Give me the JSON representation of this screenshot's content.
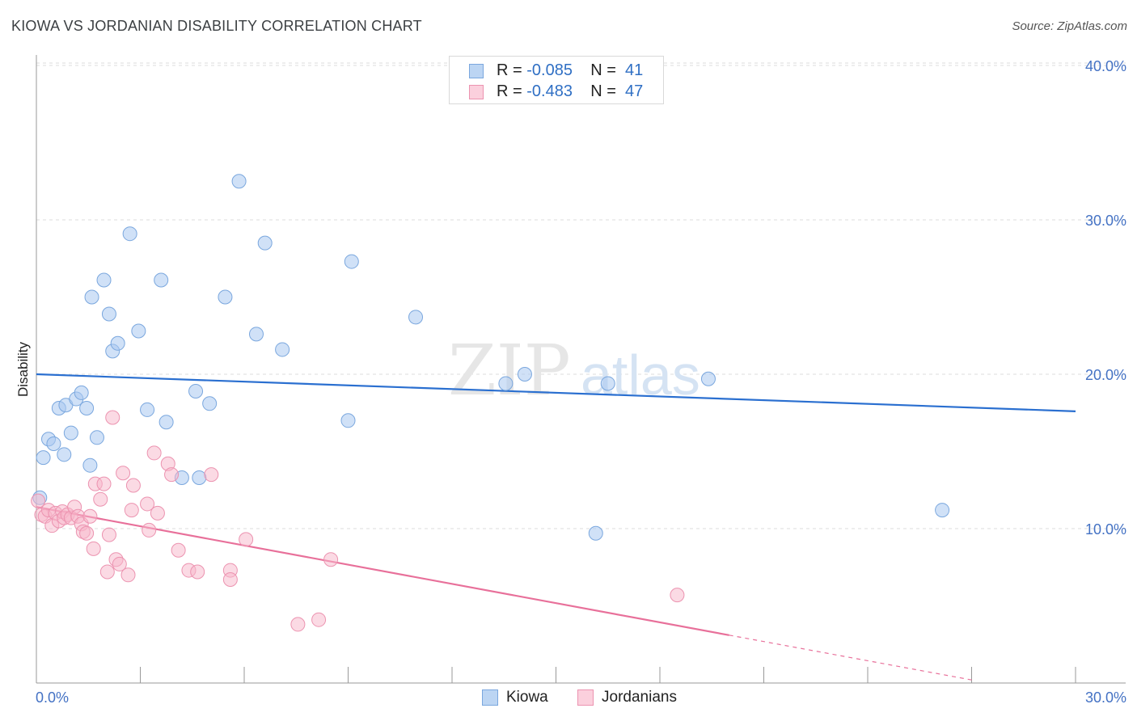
{
  "title": "KIOWA VS JORDANIAN DISABILITY CORRELATION CHART",
  "source": "Source: ZipAtlas.com",
  "watermark": {
    "zip": "ZIP",
    "atlas": "atlas"
  },
  "legend": {
    "rows": [
      {
        "r_label": "R = ",
        "r_value": "-0.085",
        "n_label": "N = ",
        "n_value": "41"
      },
      {
        "r_label": "R = ",
        "r_value": "-0.483",
        "n_label": "N = ",
        "n_value": "47"
      }
    ]
  },
  "bottom_legend": {
    "kiowa": "Kiowa",
    "jordanians": "Jordanians"
  },
  "colors": {
    "kiowa_fill": "#aac8f0",
    "kiowa_stroke": "#7aa7de",
    "kiowa_line": "#2a6fd0",
    "jordan_fill": "#f7b6ca",
    "jordan_stroke": "#ec93b0",
    "jordan_line": "#e8709a",
    "grid": "#dcdcdc",
    "tick_text": "#4472c4"
  },
  "chart_data": {
    "type": "scatter",
    "title": "KIOWA VS JORDANIAN DISABILITY CORRELATION CHART",
    "xlabel": "",
    "ylabel": "Disability",
    "xlim": [
      0,
      30
    ],
    "ylim": [
      0,
      40
    ],
    "x_tick_labels": [
      "0.0%",
      "30.0%"
    ],
    "y_ticks": [
      10,
      20,
      30,
      40
    ],
    "y_tick_labels": [
      "10.0%",
      "20.0%",
      "30.0%",
      "40.0%"
    ],
    "series": [
      {
        "name": "Kiowa",
        "r": -0.085,
        "n": 41,
        "trend": {
          "x0": 0,
          "y0": 20.0,
          "x1": 30,
          "y1": 17.6
        },
        "points": [
          [
            0.2,
            14.6
          ],
          [
            0.35,
            15.8
          ],
          [
            0.5,
            15.5
          ],
          [
            0.65,
            17.8
          ],
          [
            0.8,
            14.8
          ],
          [
            0.85,
            18.0
          ],
          [
            1.0,
            16.2
          ],
          [
            1.15,
            18.4
          ],
          [
            1.3,
            18.8
          ],
          [
            1.45,
            17.8
          ],
          [
            1.55,
            14.1
          ],
          [
            1.75,
            15.9
          ],
          [
            1.6,
            25.0
          ],
          [
            1.95,
            26.1
          ],
          [
            2.1,
            23.9
          ],
          [
            2.2,
            21.5
          ],
          [
            2.35,
            22.0
          ],
          [
            2.7,
            29.1
          ],
          [
            2.95,
            22.8
          ],
          [
            3.2,
            17.7
          ],
          [
            3.6,
            26.1
          ],
          [
            3.75,
            16.9
          ],
          [
            4.2,
            13.3
          ],
          [
            4.6,
            18.9
          ],
          [
            4.7,
            13.3
          ],
          [
            5.0,
            18.1
          ],
          [
            5.45,
            25.0
          ],
          [
            5.85,
            32.5
          ],
          [
            6.6,
            28.5
          ],
          [
            6.35,
            22.6
          ],
          [
            7.1,
            21.6
          ],
          [
            9.0,
            17.0
          ],
          [
            9.1,
            27.3
          ],
          [
            10.95,
            23.7
          ],
          [
            13.55,
            19.4
          ],
          [
            14.1,
            20.0
          ],
          [
            16.15,
            9.7
          ],
          [
            16.5,
            19.4
          ],
          [
            19.4,
            19.7
          ],
          [
            26.15,
            11.2
          ],
          [
            0.1,
            12.0
          ]
        ]
      },
      {
        "name": "Jordanians",
        "r": -0.483,
        "n": 47,
        "trend": {
          "x0": 0,
          "y0": 11.4,
          "x1": 20,
          "y1": 3.1,
          "dash_x1": 27,
          "dash_y1": 0.2
        },
        "points": [
          [
            0.05,
            11.8
          ],
          [
            0.15,
            10.9
          ],
          [
            0.25,
            10.8
          ],
          [
            0.35,
            11.2
          ],
          [
            0.45,
            10.2
          ],
          [
            0.55,
            11.0
          ],
          [
            0.65,
            10.5
          ],
          [
            0.75,
            11.1
          ],
          [
            0.8,
            10.7
          ],
          [
            0.9,
            10.9
          ],
          [
            1.0,
            10.7
          ],
          [
            1.1,
            11.4
          ],
          [
            1.2,
            10.8
          ],
          [
            1.3,
            10.3
          ],
          [
            1.35,
            9.8
          ],
          [
            1.45,
            9.7
          ],
          [
            1.55,
            10.8
          ],
          [
            1.65,
            8.7
          ],
          [
            1.7,
            12.9
          ],
          [
            1.85,
            11.9
          ],
          [
            1.95,
            12.9
          ],
          [
            2.05,
            7.2
          ],
          [
            2.1,
            9.6
          ],
          [
            2.2,
            17.2
          ],
          [
            2.3,
            8.0
          ],
          [
            2.4,
            7.7
          ],
          [
            2.5,
            13.6
          ],
          [
            2.65,
            7.0
          ],
          [
            2.75,
            11.2
          ],
          [
            2.8,
            12.8
          ],
          [
            3.2,
            11.6
          ],
          [
            3.25,
            9.9
          ],
          [
            3.4,
            14.9
          ],
          [
            3.5,
            11.0
          ],
          [
            3.8,
            14.2
          ],
          [
            3.9,
            13.5
          ],
          [
            4.1,
            8.6
          ],
          [
            4.4,
            7.3
          ],
          [
            4.65,
            7.2
          ],
          [
            5.05,
            13.5
          ],
          [
            5.6,
            7.3
          ],
          [
            5.6,
            6.7
          ],
          [
            6.05,
            9.3
          ],
          [
            7.55,
            3.8
          ],
          [
            8.15,
            4.1
          ],
          [
            8.5,
            8.0
          ],
          [
            18.5,
            5.7
          ]
        ]
      }
    ]
  }
}
